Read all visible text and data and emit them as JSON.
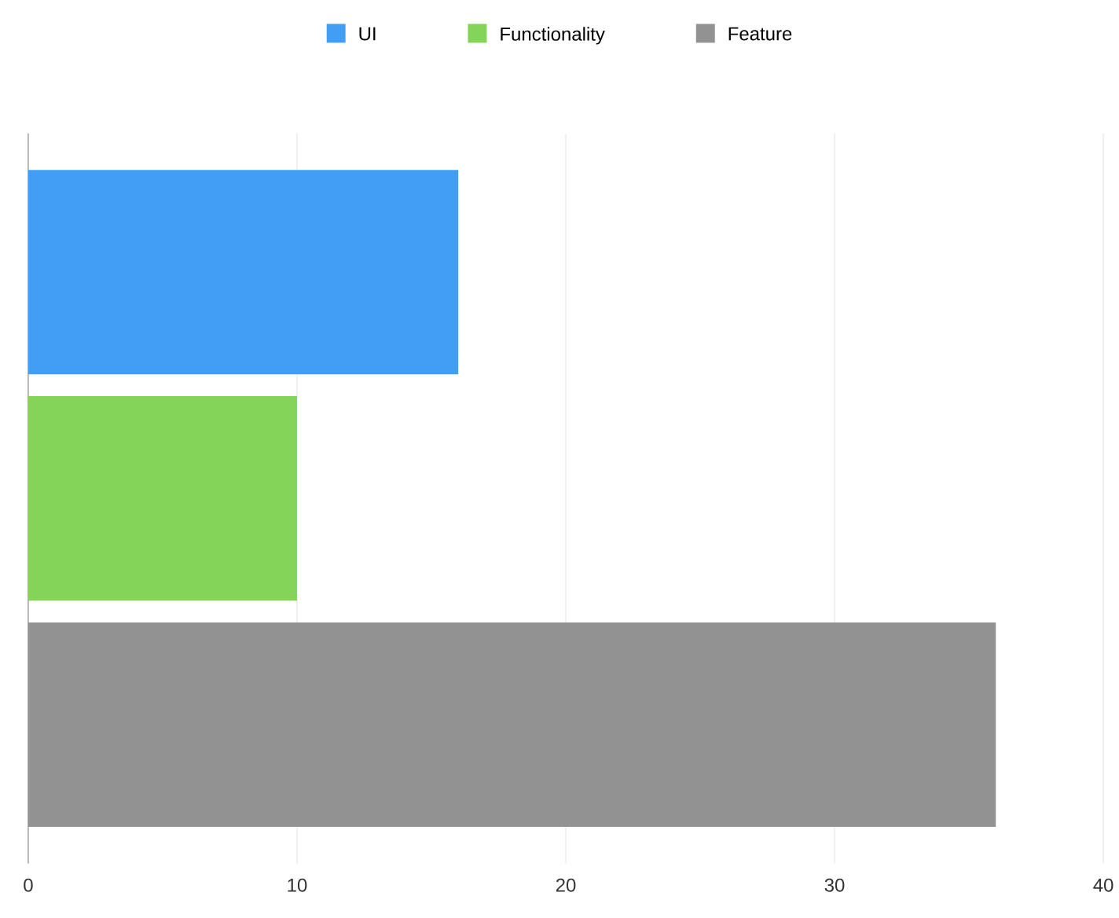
{
  "chart_data": {
    "type": "bar",
    "orientation": "horizontal",
    "categories": [
      null
    ],
    "series": [
      {
        "name": "UI",
        "color": "#429ef5",
        "values": [
          16
        ]
      },
      {
        "name": "Functionality",
        "color": "#84d45a",
        "values": [
          10
        ]
      },
      {
        "name": "Feature",
        "color": "#929292",
        "values": [
          36
        ]
      }
    ],
    "xlim": [
      0,
      40
    ],
    "xticks": [
      0,
      10,
      20,
      30,
      40
    ],
    "grid": "x",
    "legend": "top",
    "tick_labels": "x"
  }
}
